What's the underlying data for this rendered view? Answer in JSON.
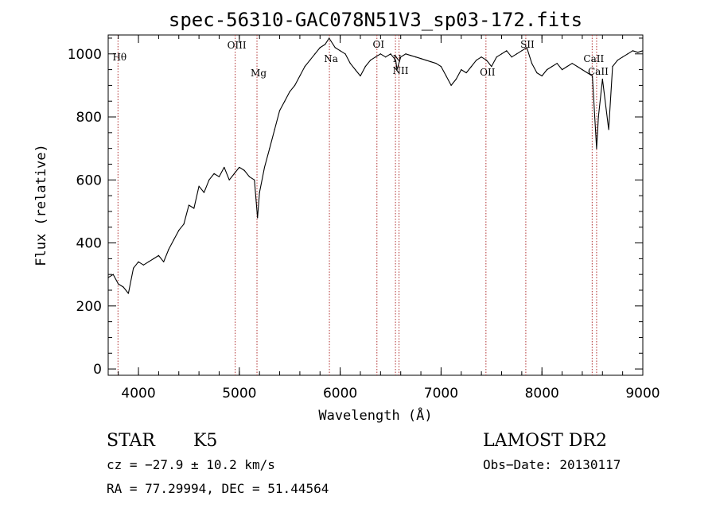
{
  "chart_data": {
    "type": "line",
    "title": "spec-56310-GAC078N51V3_sp03-172.fits",
    "xlabel": "Wavelength (Å)",
    "ylabel": "Flux (relative)",
    "xlim": [
      3700,
      9000
    ],
    "ylim": [
      -20,
      1060
    ],
    "x_ticks": [
      "4000",
      "5000",
      "6000",
      "7000",
      "8000",
      "9000"
    ],
    "y_ticks": [
      "0",
      "200",
      "400",
      "600",
      "800",
      "1000"
    ],
    "grid": false,
    "series": [
      {
        "x": [
          3700,
          3750,
          3800,
          3850,
          3900,
          3950,
          4000,
          4050,
          4100,
          4150,
          4200,
          4250,
          4300,
          4350,
          4400,
          4450,
          4500,
          4550,
          4600,
          4650,
          4700,
          4750,
          4800,
          4850,
          4900,
          4950,
          5000,
          5050,
          5100,
          5150,
          5180,
          5200,
          5250,
          5300,
          5350,
          5400,
          5450,
          5500,
          5550,
          5600,
          5650,
          5700,
          5750,
          5800,
          5850,
          5890,
          5950,
          6000,
          6050,
          6100,
          6150,
          6200,
          6250,
          6300,
          6350,
          6400,
          6450,
          6500,
          6550,
          6563,
          6600,
          6650,
          6700,
          6750,
          6800,
          6850,
          6900,
          6950,
          7000,
          7050,
          7100,
          7150,
          7200,
          7250,
          7300,
          7350,
          7400,
          7450,
          7500,
          7550,
          7600,
          7650,
          7700,
          7750,
          7800,
          7850,
          7900,
          7950,
          8000,
          8050,
          8100,
          8150,
          8200,
          8250,
          8300,
          8350,
          8400,
          8450,
          8500,
          8542,
          8560,
          8600,
          8662,
          8700,
          8750,
          8800,
          8850,
          8900,
          8950,
          9000
        ],
        "y": [
          290,
          300,
          270,
          260,
          240,
          320,
          340,
          330,
          340,
          350,
          360,
          340,
          380,
          410,
          440,
          460,
          520,
          510,
          580,
          560,
          600,
          620,
          610,
          640,
          600,
          620,
          640,
          630,
          610,
          600,
          480,
          560,
          640,
          700,
          760,
          820,
          850,
          880,
          900,
          930,
          960,
          980,
          1000,
          1020,
          1030,
          1050,
          1020,
          1010,
          1000,
          970,
          950,
          930,
          960,
          980,
          990,
          1000,
          990,
          1000,
          980,
          950,
          990,
          1000,
          995,
          990,
          985,
          980,
          975,
          970,
          960,
          930,
          900,
          920,
          950,
          940,
          960,
          980,
          990,
          980,
          960,
          990,
          1000,
          1010,
          990,
          1000,
          1010,
          1020,
          970,
          940,
          930,
          950,
          960,
          970,
          950,
          960,
          970,
          960,
          950,
          940,
          930,
          700,
          800,
          920,
          760,
          960,
          980,
          990,
          1000,
          1010,
          1005,
          1010
        ]
      }
    ],
    "line_markers": [
      {
        "x": 3797,
        "label": "Hθ"
      },
      {
        "x": 4959,
        "label": "OIII"
      },
      {
        "x": 5175,
        "label": "Mg"
      },
      {
        "x": 5893,
        "label": "Na"
      },
      {
        "x": 6364,
        "label": "OI"
      },
      {
        "x": 6548,
        "label": "N"
      },
      {
        "x": 6583,
        "label": "NII"
      },
      {
        "x": 7445,
        "label": "OII"
      },
      {
        "x": 7840,
        "label": "SII"
      },
      {
        "x": 8498,
        "label": "CaII"
      },
      {
        "x": 8542,
        "label": "CaII"
      }
    ]
  },
  "info": {
    "object_class": "STAR",
    "subclass": "K5",
    "survey": "LAMOST DR2",
    "cz": "cz = −27.9 ± 10.2 km/s",
    "obs_date": "Obs−Date: 20130117",
    "coords": "RA =  77.29994, DEC =  51.44564"
  }
}
